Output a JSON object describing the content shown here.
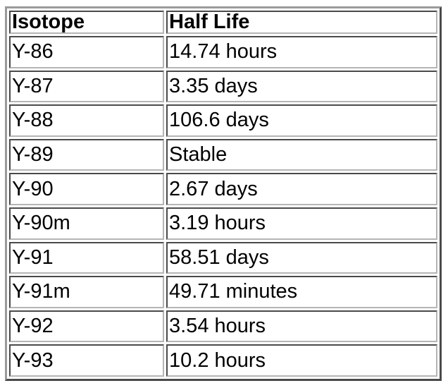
{
  "table": {
    "headers": [
      "Isotope",
      "Half Life"
    ],
    "rows": [
      [
        "Y-86",
        "14.74 hours"
      ],
      [
        "Y-87",
        "3.35 days"
      ],
      [
        "Y-88",
        "106.6 days"
      ],
      [
        "Y-89",
        "Stable"
      ],
      [
        "Y-90",
        "2.67 days"
      ],
      [
        "Y-90m",
        "3.19 hours"
      ],
      [
        "Y-91",
        "58.51 days"
      ],
      [
        "Y-91m",
        "49.71 minutes"
      ],
      [
        "Y-92",
        "3.54 hours"
      ],
      [
        "Y-93",
        "10.2 hours"
      ]
    ]
  },
  "colors": {
    "border_dark": "#4a4a4a",
    "border_light": "#b5b5b5",
    "background": "#ffffff",
    "text": "#000000"
  }
}
